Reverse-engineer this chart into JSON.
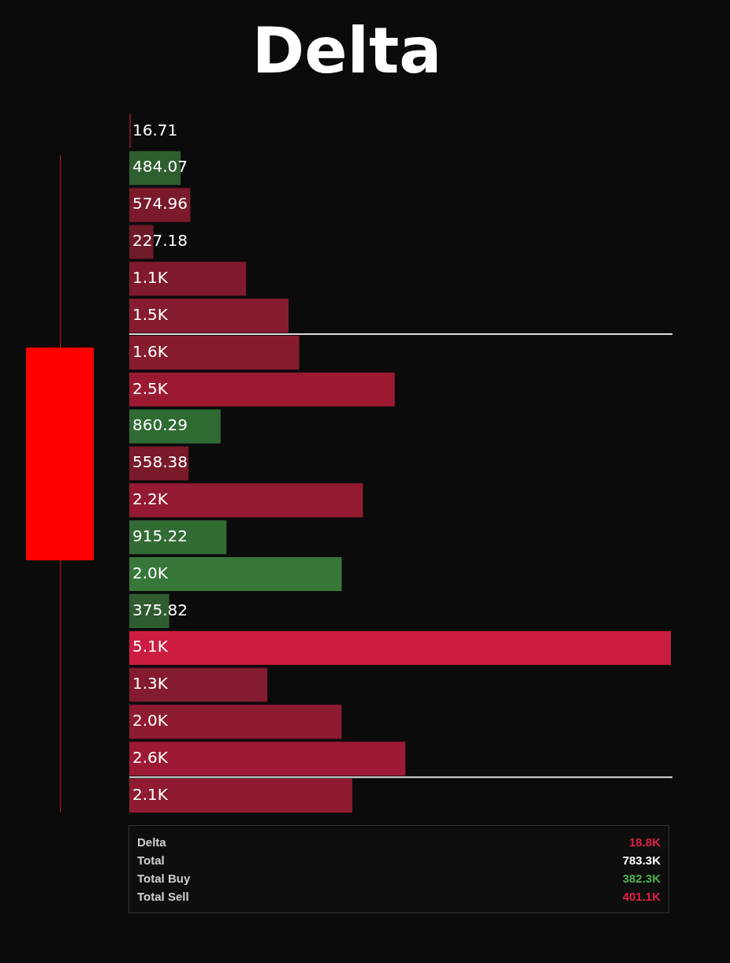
{
  "chart_data": {
    "type": "bar",
    "orientation": "horizontal",
    "title": "Delta",
    "categories": [
      null,
      null,
      null,
      null,
      null,
      null,
      null,
      null,
      null,
      null,
      null,
      null,
      null,
      null,
      null,
      null,
      null,
      null,
      null
    ],
    "values": [
      16.71,
      484.07,
      574.96,
      227.18,
      1100,
      1500,
      1600,
      2500,
      860.29,
      558.38,
      2200,
      915.22,
      2000,
      375.82,
      5100,
      1300,
      2000,
      2600,
      2100
    ],
    "value_labels": [
      "16.71",
      "484.07",
      "574.96",
      "227.18",
      "1.1K",
      "1.5K",
      "1.6K",
      "2.5K",
      "860.29",
      "558.38",
      "2.2K",
      "915.22",
      "2.0K",
      "375.82",
      "5.1K",
      "1.3K",
      "2.0K",
      "2.6K",
      "2.1K"
    ],
    "colors": [
      "#6b1420",
      "#2f5e2f",
      "#7a1a2a",
      "#6e1a28",
      "#801b2d",
      "#861b2e",
      "#861b2e",
      "#9b1a32",
      "#2f6a32",
      "#7a1a2a",
      "#931a30",
      "#336b34",
      "#38773a",
      "#2f5c30",
      "#cc1d40",
      "#841b2e",
      "#8e1b30",
      "#9c1a33",
      "#901b30"
    ],
    "legend": false,
    "annotations": [
      "Delta",
      "18.8K",
      "Total",
      "783.3K",
      "Total Buy",
      "382.3K",
      "Total Sell",
      "401.1K"
    ]
  }
}
